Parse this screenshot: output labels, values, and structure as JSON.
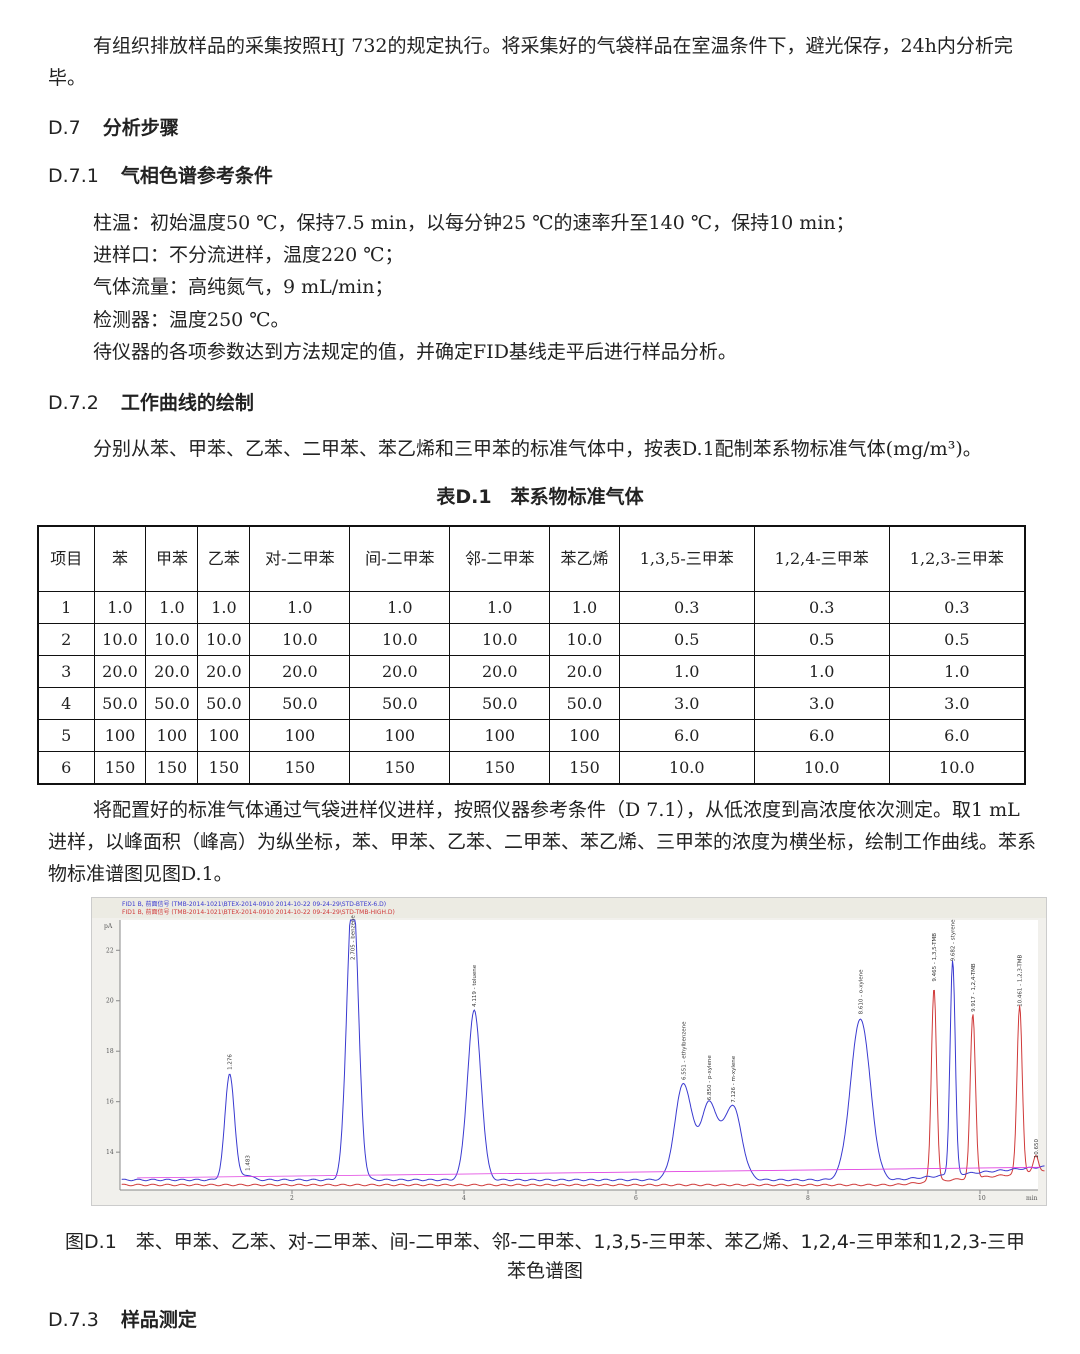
{
  "intro_paragraph": "有组织排放样品的采集按照HJ 732的规定执行。将采集好的气袋样品在室温条件下，避光保存，24h内分析完毕。",
  "section_d7": {
    "number": "D.7",
    "title": "分析步骤"
  },
  "section_d71": {
    "number": "D.7.1",
    "title": "气相色谱参考条件"
  },
  "conditions": [
    "柱温：初始温度50 ℃，保持7.5 min，以每分钟25 ℃的速率升至140 ℃，保持10 min；",
    "进样口：不分流进样，温度220 ℃；",
    "气体流量：高纯氮气，9 mL/min；",
    "检测器：温度250 ℃。",
    "待仪器的各项参数达到方法规定的值，并确定FID基线走平后进行样品分析。"
  ],
  "section_d72": {
    "number": "D.7.2",
    "title": "工作曲线的绘制"
  },
  "d72_paragraph": "分别从苯、甲苯、乙苯、二甲苯、苯乙烯和三甲苯的标准气体中，按表D.1配制苯系物标准气体(mg/m³)。",
  "table": {
    "caption": "表D.1　苯系物标准气体",
    "headers": [
      "项目",
      "苯",
      "甲苯",
      "乙苯",
      "对-二甲苯",
      "间-二甲苯",
      "邻-二甲苯",
      "苯乙烯",
      "1,3,5-三甲苯",
      "1,2,4-三甲苯",
      "1,2,3-三甲苯"
    ],
    "rows": [
      [
        "1",
        "1.0",
        "1.0",
        "1.0",
        "1.0",
        "1.0",
        "1.0",
        "1.0",
        "0.3",
        "0.3",
        "0.3"
      ],
      [
        "2",
        "10.0",
        "10.0",
        "10.0",
        "10.0",
        "10.0",
        "10.0",
        "10.0",
        "0.5",
        "0.5",
        "0.5"
      ],
      [
        "3",
        "20.0",
        "20.0",
        "20.0",
        "20.0",
        "20.0",
        "20.0",
        "20.0",
        "1.0",
        "1.0",
        "1.0"
      ],
      [
        "4",
        "50.0",
        "50.0",
        "50.0",
        "50.0",
        "50.0",
        "50.0",
        "50.0",
        "3.0",
        "3.0",
        "3.0"
      ],
      [
        "5",
        "100",
        "100",
        "100",
        "100",
        "100",
        "100",
        "100",
        "6.0",
        "6.0",
        "6.0"
      ],
      [
        "6",
        "150",
        "150",
        "150",
        "150",
        "150",
        "150",
        "150",
        "10.0",
        "10.0",
        "10.0"
      ]
    ]
  },
  "after_table_paragraph": "将配置好的标准气体通过气袋进样仪进样，按照仪器参考条件（D 7.1），从低浓度到高浓度依次测定。取1 mL进样，以峰面积（峰高）为纵坐标，苯、甲苯、乙苯、二甲苯、苯乙烯、三甲苯的浓度为横坐标，绘制工作曲线。苯系物标准谱图见图D.1。",
  "chart_data": {
    "type": "line",
    "legend": [
      {
        "name": "FID1 B, 前面信号 (TMB-2014-1021\\BTEX-2014-0910 2014-10-22 09-24-29\\STD-BTEX-6.D)",
        "color": "#3a3ad0"
      },
      {
        "name": "FID1 B, 前面信号 (TMB-2014-1021\\BTEX-2014-0910 2014-10-22 09-24-29\\STD-TMB-HIGH.D)",
        "color": "#d03a3a"
      }
    ],
    "legend_placement": "top-left",
    "ylabel": "pA",
    "xlabel": "min",
    "xlim": [
      0,
      10.7
    ],
    "ylim": [
      12.5,
      23.2
    ],
    "xticks": [
      "2",
      "4",
      "6",
      "8",
      "10"
    ],
    "yticks": [
      "14",
      "16",
      "18",
      "20",
      "22"
    ],
    "baseline": 12.9,
    "peaks": [
      {
        "series": 0,
        "rt": 1.276,
        "label": "1.276",
        "height": 17.1
      },
      {
        "series": 0,
        "rt": 1.483,
        "label": "1.483",
        "height": 13.1
      },
      {
        "series": 0,
        "rt": 2.705,
        "label": "2.705 - benzene",
        "height": 24.5
      },
      {
        "series": 0,
        "rt": 4.119,
        "label": "4.119 - toluene",
        "height": 19.6
      },
      {
        "series": 0,
        "rt": 6.551,
        "label": "6.551 - ethylbenzene",
        "height": 16.7
      },
      {
        "series": 0,
        "rt": 6.85,
        "label": "6.850 - p-xylene",
        "height": 15.9
      },
      {
        "series": 0,
        "rt": 7.126,
        "label": "7.126 - m-xylene",
        "height": 15.8
      },
      {
        "series": 0,
        "rt": 8.61,
        "label": "8.610 - o-xylene",
        "height": 19.3
      },
      {
        "series": 1,
        "rt": 9.465,
        "label": "9.465 - 1,3,5-TMB",
        "height": 20.6
      },
      {
        "series": 0,
        "rt": 9.682,
        "label": "9.682 - styrene",
        "height": 21.4
      },
      {
        "series": 1,
        "rt": 9.917,
        "label": "9.917 - 1,2,4-TMB",
        "height": 19.4
      },
      {
        "series": 1,
        "rt": 10.461,
        "label": "10.461 - 1,2,3-TMB",
        "height": 19.6
      },
      {
        "series": 1,
        "rt": 10.65,
        "label": "10.650",
        "height": 13.6
      }
    ],
    "colors": {
      "series0": "#3a3ad0",
      "series1": "#d03a3a",
      "integration": "#e040e0"
    }
  },
  "figure_caption": "图D.1　苯、甲苯、乙苯、对-二甲苯、间-二甲苯、邻-二甲苯、1,3,5-三甲苯、苯乙烯、1,2,4-三甲苯和1,2,3-三甲苯色谱图",
  "section_d73": {
    "number": "D.7.3",
    "title": "样品测定"
  }
}
